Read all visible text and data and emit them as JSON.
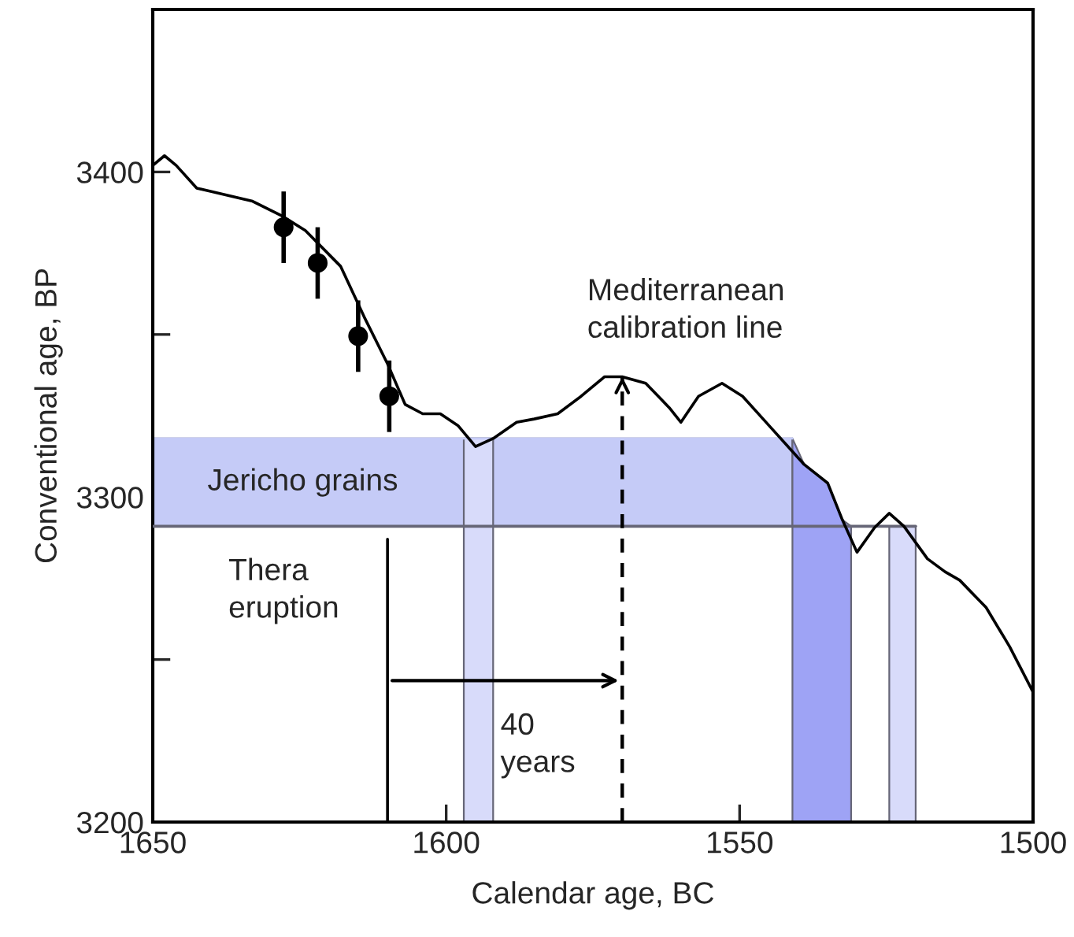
{
  "chart_data": {
    "type": "line",
    "xlabel": "Calendar age, BC",
    "ylabel": "Conventional age, BP",
    "xlim": [
      1650,
      1500
    ],
    "ylim": [
      3200,
      3450
    ],
    "xticks": [
      1650,
      1600,
      1550,
      1500
    ],
    "yticks": [
      3200,
      {
        "value": 3250,
        "label": null
      },
      3300,
      {
        "value": 3350,
        "label": null
      },
      3400
    ],
    "grid": false,
    "series": [
      {
        "name": "Jericho grains",
        "type": "line",
        "color": "#c5cbf7",
        "x": [
          1650,
          1541
        ],
        "values": [
          3318,
          3318
        ],
        "lower": [
          3291,
          3291
        ],
        "upper": [
          3318,
          3318
        ]
      },
      {
        "type": "area",
        "color": "#d8dbfa",
        "x": [
          1597,
          1592
        ],
        "values": [
          3318,
          3318
        ]
      },
      {
        "type": "area",
        "color": "#9ea3f5",
        "x": [
          1541,
          1539,
          1535,
          1532.5,
          1531
        ],
        "values": [
          3318,
          3310,
          3304,
          3293,
          3291
        ]
      },
      {
        "type": "area",
        "color": "#d8dbfa",
        "x": [
          1524.5,
          1520
        ],
        "values": [
          3291,
          3291
        ]
      },
      {
        "type": "line",
        "color": "#666677",
        "x": [
          1650,
          1520
        ],
        "values": [
          3291,
          3291
        ]
      },
      {
        "color": "#000000",
        "line_style": "solid",
        "x": [
          1650,
          1648,
          1646,
          1642.5,
          1640,
          1633,
          1628,
          1624,
          1618,
          1614,
          1610,
          1607,
          1604,
          1601,
          1598,
          1595,
          1592,
          1588,
          1585,
          1581,
          1577,
          1573,
          1570,
          1566,
          1562,
          1560,
          1557,
          1553,
          1549.5,
          1545,
          1539,
          1535,
          1532.5,
          1530,
          1527,
          1524.5,
          1522,
          1518,
          1515,
          1512.5,
          1508,
          1504,
          1500
        ],
        "values": [
          3402,
          3405,
          3402,
          3395,
          3394,
          3391,
          3386.5,
          3382,
          3371,
          3355.5,
          3341,
          3328.5,
          3325.6,
          3325.6,
          3322,
          3315.5,
          3318,
          3323,
          3324,
          3325.6,
          3331,
          3337,
          3337,
          3335,
          3327.5,
          3323,
          3331,
          3335,
          3331,
          3322,
          3310,
          3304.3,
          3293,
          3283,
          3290.6,
          3295,
          3291,
          3281,
          3277,
          3274.4,
          3266,
          3254,
          3240
        ]
      },
      {
        "type": "scatter",
        "color": "#000000",
        "marker": "circle",
        "x": [
          1627.7,
          1621.9,
          1615,
          1609.7
        ],
        "values": [
          3383,
          3372,
          3349.5,
          3331
        ],
        "errors": [
          11,
          11,
          11,
          11
        ]
      },
      {
        "type": "line",
        "color": "#000000",
        "line_style": "dashed",
        "x": [
          1570,
          1570
        ],
        "values": [
          3200,
          3337
        ]
      },
      {
        "type": "line",
        "color": "#000000",
        "x": [
          1610,
          1610
        ],
        "values": [
          3200,
          3287
        ]
      }
    ],
    "annotations": [
      {
        "text": "Mediterranean\ncalibration line",
        "x": 1570,
        "y": 3337
      },
      "40\nyears",
      "Thera\neruption"
    ]
  }
}
